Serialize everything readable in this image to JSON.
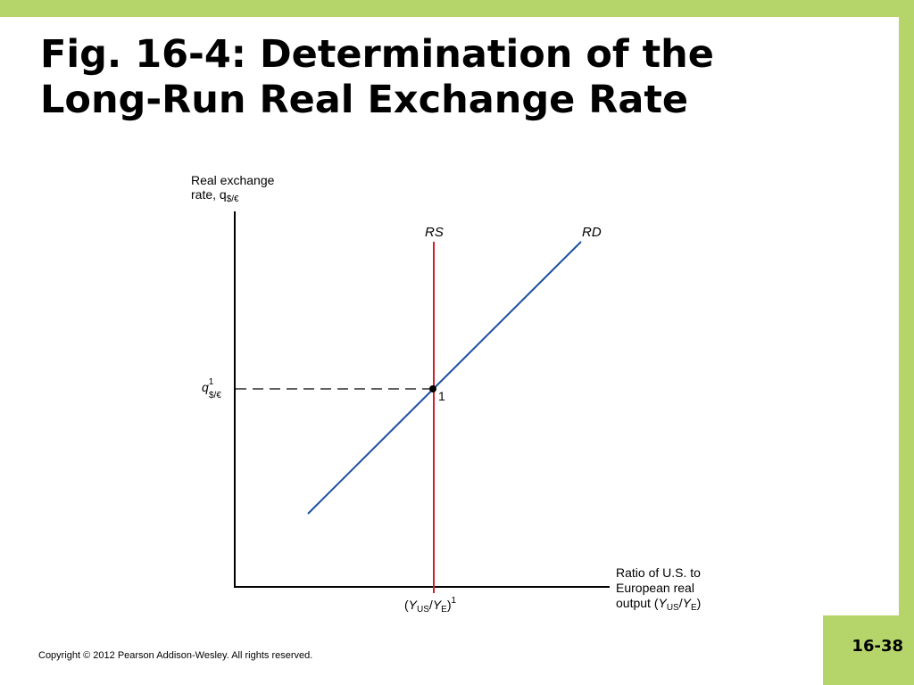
{
  "slide": {
    "title_line1": "Fig. 16-4: Determination of the",
    "title_line2": "Long-Run Real Exchange Rate",
    "copyright": "Copyright © 2012 Pearson Addison-Wesley. All rights reserved.",
    "page_number": "16-38"
  },
  "diagram": {
    "y_axis_label_line1": "Real exchange",
    "y_axis_label_line2": "rate, q",
    "y_axis_label_sub": "$/€",
    "x_axis_label_line1": "Ratio of U.S. to",
    "x_axis_label_line2": "European real",
    "x_axis_label_line3_prefix": "output (",
    "x_axis_label_Y": "Y",
    "x_axis_label_US": "US",
    "x_axis_label_slash": "/",
    "x_axis_label_E": "E",
    "x_axis_label_close": ")",
    "rs_label": "RS",
    "rd_label": "RD",
    "equilibrium_label": "1",
    "q_tick_q": "q",
    "q_tick_sup": "1",
    "q_tick_sub": "$/€",
    "x_tick_open": "(",
    "x_tick_Y": "Y",
    "x_tick_US": "US",
    "x_tick_slash": "/",
    "x_tick_E": "E",
    "x_tick_close": ")",
    "x_tick_sup": "1"
  },
  "colors": {
    "frame": "#b5d56a",
    "rs_curve": "#d0202a",
    "rd_curve": "#1f4fa0"
  }
}
